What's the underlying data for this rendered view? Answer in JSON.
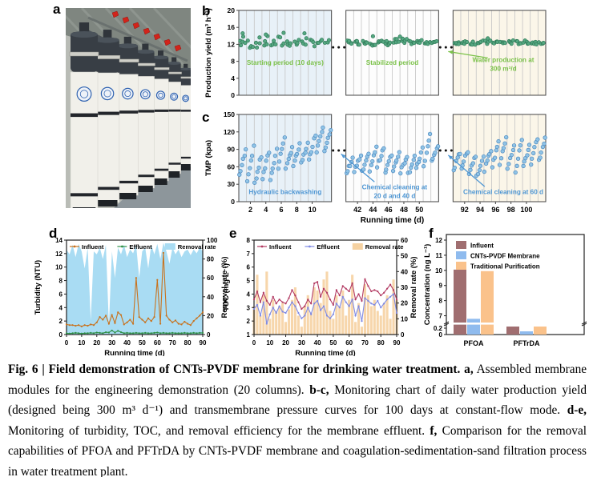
{
  "figure": {
    "panel_letters": {
      "a": "a",
      "b": "b",
      "c": "c",
      "d": "d",
      "e": "e",
      "f": "f"
    },
    "caption_segments": [
      {
        "text": "Fig. 6 | Field demonstration of CNTs-PVDF membrane for drinking water treatment. ",
        "bold": true
      },
      {
        "text": "a,",
        "bold": true
      },
      {
        "text": " Assembled membrane modules for the engineering demonstration (20 columns). ",
        "bold": false
      },
      {
        "text": "b-c,",
        "bold": true
      },
      {
        "text": " Monitoring chart of daily water production yield (designed being 300 m³ d⁻¹) and transmembrane pressure curves for 100 days at constant-flow mode. ",
        "bold": false
      },
      {
        "text": "d-e,",
        "bold": true
      },
      {
        "text": " Monitoring of turbidity, TOC, and removal efficiency for the membrane effluent. ",
        "bold": false
      },
      {
        "text": "f,",
        "bold": true
      },
      {
        "text": " Comparison for the removal capabilities of PFOA and PFTrDA by CNTs-PVDF membrane and coagulation-sedimentation-sand filtration process in water treatment plant.",
        "bold": false
      }
    ]
  },
  "panel_a": {
    "description": "Photo of assembled CNTs-PVDF membrane module columns",
    "columns": 10,
    "colors": {
      "wall": "#b9bcb6",
      "ceiling": "#7f8680",
      "floor": "#8d969b",
      "cap": "#383e45",
      "cap_hi": "#4a525a",
      "neck": "#30353b",
      "clamp": "#cfcfc8",
      "body": "#f1f0ea",
      "ring": "#23262b",
      "logo": "#2f62b0",
      "valve": "#d2231a",
      "pipe": "#4d5358"
    }
  },
  "chart_data": [
    {
      "id": "b",
      "type": "scatter",
      "ylabel": "Production yield (m³ h⁻¹)",
      "ylim": [
        0,
        20
      ],
      "yticks": [
        0,
        4,
        8,
        12,
        16,
        20
      ],
      "segment_days": 12,
      "segments": [
        {
          "start_day": 1,
          "bg": "#e8f1f8"
        },
        {
          "start_day": 41,
          "bg": "#fdfdfd"
        },
        {
          "start_day": 91,
          "bg": "#fbf6e9"
        }
      ],
      "point_color": "#55a781",
      "point_edge": "#2f7a57",
      "break_marker_value": 11.3,
      "clusters": [
        [
          1,
          12.6,
          1.6,
          5
        ],
        [
          2,
          12.2,
          1.2,
          4
        ],
        [
          3,
          12.4,
          1.3,
          4
        ],
        [
          4,
          12.6,
          1.4,
          4
        ],
        [
          5,
          12.3,
          1.0,
          4
        ],
        [
          6,
          12.5,
          1.5,
          4
        ],
        [
          7,
          12.4,
          0.9,
          4
        ],
        [
          8,
          12.3,
          1.1,
          4
        ],
        [
          9,
          12.8,
          1.2,
          4
        ],
        [
          10,
          12.3,
          0.8,
          4
        ],
        [
          11,
          12.5,
          0.6,
          4
        ],
        [
          12,
          12.5,
          0.5,
          3
        ],
        [
          41,
          12.5,
          0.5,
          5
        ],
        [
          42,
          12.4,
          0.5,
          5
        ],
        [
          43,
          12.5,
          0.4,
          5
        ],
        [
          44,
          12.4,
          0.7,
          5
        ],
        [
          45,
          12.5,
          0.4,
          5
        ],
        [
          46,
          12.3,
          0.6,
          5
        ],
        [
          47,
          12.6,
          0.8,
          5
        ],
        [
          48,
          12.5,
          0.9,
          5
        ],
        [
          49,
          12.4,
          0.4,
          5
        ],
        [
          50,
          12.5,
          0.5,
          5
        ],
        [
          51,
          12.5,
          0.4,
          5
        ],
        [
          52,
          12.4,
          0.4,
          4
        ],
        [
          91,
          12.4,
          0.5,
          5
        ],
        [
          92,
          12.5,
          0.4,
          5
        ],
        [
          93,
          12.4,
          0.5,
          5
        ],
        [
          94,
          12.5,
          0.4,
          5
        ],
        [
          95,
          12.4,
          0.5,
          5
        ],
        [
          96,
          12.5,
          0.4,
          5
        ],
        [
          97,
          12.4,
          0.4,
          5
        ],
        [
          98,
          12.5,
          0.5,
          5
        ],
        [
          99,
          12.4,
          0.4,
          5
        ],
        [
          100,
          12.5,
          0.4,
          5
        ],
        [
          101,
          12.4,
          0.5,
          5
        ],
        [
          102,
          12.5,
          0.4,
          4
        ]
      ],
      "extra_points": [
        [
          1,
          14.6
        ],
        [
          4,
          14.3
        ],
        [
          6.3,
          14.7
        ],
        [
          9,
          14.6
        ],
        [
          44,
          13.9
        ],
        [
          47.5,
          13.8
        ],
        [
          95,
          13.4
        ]
      ],
      "annotation_color": "#7cc24a",
      "annotations": [
        {
          "lines": [
            "Starting period (10 days)"
          ],
          "day": 6.5,
          "value": 7.2
        },
        {
          "lines": [
            "Stabilized period"
          ],
          "day": 46.5,
          "value": 7.2
        },
        {
          "lines": [
            "Water production at",
            "300 m³/d"
          ],
          "day": 97,
          "value": 7.8,
          "arrow": {
            "from": [
              95.0,
              8.8
            ],
            "to_gap": 1,
            "tip_value": 10.3
          }
        }
      ]
    },
    {
      "id": "c",
      "type": "scatter",
      "ylabel": "TMP (kpa)",
      "xlabel": "Running time (d)",
      "ylim": [
        0,
        150
      ],
      "yticks": [
        0,
        30,
        60,
        90,
        120,
        150
      ],
      "segment_days": 12,
      "xtick_labels": true,
      "segments": [
        {
          "start_day": 1,
          "bg": "#e8f1f8"
        },
        {
          "start_day": 41,
          "bg": "#fdfdfd"
        },
        {
          "start_day": 91,
          "bg": "#fbf6e9"
        }
      ],
      "point_color": "#90c4e6",
      "point_edge": "#4a86be",
      "break_marker_value": 88,
      "clusters": [
        [
          1,
          46,
          88
        ],
        [
          2,
          38,
          93
        ],
        [
          3,
          33,
          78
        ],
        [
          4,
          40,
          86
        ],
        [
          5,
          38,
          90
        ],
        [
          6,
          58,
          113
        ],
        [
          7,
          55,
          95
        ],
        [
          8,
          62,
          97
        ],
        [
          9,
          65,
          100
        ],
        [
          10,
          70,
          116
        ],
        [
          11,
          88,
          131
        ],
        [
          12,
          90,
          120
        ],
        [
          41,
          48,
          75
        ],
        [
          42,
          52,
          78
        ],
        [
          43,
          50,
          80
        ],
        [
          44,
          55,
          93
        ],
        [
          45,
          60,
          95
        ],
        [
          46,
          50,
          80
        ],
        [
          47,
          55,
          85
        ],
        [
          48,
          52,
          80
        ],
        [
          49,
          48,
          78
        ],
        [
          50,
          55,
          90
        ],
        [
          51,
          62,
          115
        ],
        [
          52,
          70,
          95
        ],
        [
          91,
          55,
          85
        ],
        [
          92,
          58,
          88
        ],
        [
          93,
          50,
          80
        ],
        [
          94,
          45,
          75
        ],
        [
          95,
          55,
          90
        ],
        [
          96,
          60,
          105
        ],
        [
          97,
          65,
          112
        ],
        [
          98,
          58,
          95
        ],
        [
          99,
          52,
          108
        ],
        [
          100,
          60,
          98
        ],
        [
          101,
          65,
          110
        ],
        [
          102,
          70,
          108
        ]
      ],
      "extra_points": [],
      "annotation_color": "#4f97d4",
      "annotations": [
        {
          "lines": [
            "Hydraulic backwashing"
          ],
          "day": 6.5,
          "value": 13
        },
        {
          "lines": [
            "Chemical cleaning at",
            "20 d and 40 d"
          ],
          "day": 46.8,
          "value": 21,
          "arrow": {
            "from": [
              44.2,
              34
            ],
            "to_gap": 0,
            "tip_value": 82
          }
        },
        {
          "lines": [
            "Chemical cleaning at 60 d"
          ],
          "day": 97,
          "value": 13,
          "arrow": {
            "from": [
              94.6,
              26
            ],
            "to_gap": 1,
            "tip_value": 80
          }
        }
      ]
    },
    {
      "id": "d",
      "type": "line-area",
      "xlabel": "Running time (d)",
      "xticks": [
        0,
        10,
        20,
        30,
        40,
        50,
        60,
        70,
        80,
        90
      ],
      "xlim": [
        0,
        90
      ],
      "left_axis": {
        "label": "Turbidity (NTU)",
        "lim": [
          0,
          14
        ],
        "ticks": [
          0,
          2,
          4,
          6,
          8,
          10,
          12,
          14
        ]
      },
      "right_axis": {
        "label": "Removal rate (%)",
        "lim": [
          0,
          100
        ],
        "ticks": [
          0,
          20,
          40,
          60,
          80,
          100
        ]
      },
      "x": [
        0,
        2,
        4,
        6,
        8,
        10,
        12,
        14,
        16,
        18,
        20,
        22,
        24,
        26,
        28,
        30,
        32,
        34,
        36,
        38,
        40,
        42,
        44,
        46,
        48,
        50,
        52,
        54,
        56,
        58,
        60,
        62,
        64,
        66,
        68,
        70,
        72,
        74,
        76,
        78,
        80,
        82,
        84,
        86,
        88,
        90
      ],
      "series": [
        {
          "name": "Removal rate",
          "render": "area",
          "axis": "right",
          "color": "#a9dcf3",
          "values": [
            90,
            85,
            95,
            82,
            96,
            88,
            70,
            92,
            15,
            88,
            85,
            92,
            80,
            95,
            10,
            88,
            60,
            92,
            85,
            95,
            82,
            90,
            86,
            95,
            60,
            88,
            92,
            70,
            95,
            85,
            96,
            80,
            97,
            88,
            75,
            92,
            85,
            90,
            82,
            88,
            90,
            84,
            90,
            86,
            92,
            88
          ]
        },
        {
          "name": "Influent",
          "render": "line",
          "axis": "left",
          "color": "#c8731f",
          "values": [
            1.5,
            1.4,
            1.4,
            1.3,
            1.4,
            1.2,
            1.4,
            1.3,
            1.5,
            1.4,
            1.8,
            2.6,
            2.2,
            2.8,
            1.6,
            2.9,
            1.7,
            3.3,
            2.9,
            1.5,
            1.8,
            2.2,
            1.6,
            8.4,
            2.6,
            2.2,
            1.8,
            2.4,
            2.0,
            2.6,
            8.1,
            1.6,
            12.1,
            2.8,
            2.2,
            1.8,
            2.1,
            1.6,
            1.5,
            1.9,
            1.6,
            1.4,
            2.0,
            2.4,
            2.8,
            3.3
          ]
        },
        {
          "name": "Effluent",
          "render": "line",
          "axis": "left",
          "color": "#2f9148",
          "values": [
            0.2,
            0.15,
            0.2,
            0.25,
            0.2,
            0.15,
            0.2,
            0.2,
            0.25,
            0.2,
            0.3,
            0.25,
            0.2,
            0.35,
            0.3,
            0.6,
            0.3,
            0.55,
            0.35,
            0.2,
            0.25,
            0.2,
            0.2,
            0.25,
            0.2,
            0.2,
            0.25,
            0.2,
            0.2,
            0.25,
            0.3,
            0.2,
            0.25,
            0.2,
            0.2,
            0.25,
            0.2,
            0.2,
            0.2,
            0.25,
            0.2,
            0.2,
            0.25,
            0.2,
            0.25,
            0.25
          ]
        }
      ],
      "legend_order": [
        "Influent",
        "Effluent",
        "Removal rate"
      ]
    },
    {
      "id": "e",
      "type": "line-bar",
      "xlabel": "Running time (d)",
      "xticks": [
        0,
        10,
        20,
        30,
        40,
        50,
        60,
        70,
        80,
        90
      ],
      "xlim": [
        0,
        90
      ],
      "left_axis": {
        "label": "TOC (mg L⁻¹)",
        "lim": [
          1,
          8
        ],
        "ticks": [
          1,
          2,
          3,
          4,
          5,
          6,
          7,
          8
        ]
      },
      "right_axis": {
        "label": "Removal rate (%)",
        "lim": [
          0,
          60
        ],
        "ticks": [
          0,
          10,
          20,
          30,
          40,
          50,
          60
        ]
      },
      "x": [
        0,
        2,
        4,
        6,
        8,
        10,
        12,
        14,
        16,
        18,
        20,
        22,
        24,
        26,
        28,
        30,
        32,
        34,
        36,
        38,
        40,
        42,
        44,
        46,
        48,
        50,
        52,
        54,
        56,
        58,
        60,
        62,
        64,
        66,
        68,
        70,
        72,
        74,
        76,
        78,
        80,
        82,
        84,
        86,
        88,
        90
      ],
      "series": [
        {
          "name": "Removal rate",
          "render": "bar",
          "axis": "right",
          "color": "#f6d2a2",
          "values": [
            18,
            38,
            12,
            25,
            40,
            10,
            22,
            15,
            18,
            20,
            8,
            16,
            22,
            30,
            12,
            5,
            18,
            25,
            14,
            30,
            28,
            20,
            35,
            40,
            15,
            10,
            25,
            18,
            28,
            12,
            22,
            38,
            8,
            20,
            5,
            32,
            25,
            18,
            22,
            15,
            12,
            20,
            25,
            10,
            35,
            22
          ]
        },
        {
          "name": "Influent",
          "render": "line",
          "axis": "left",
          "color": "#b23a62",
          "values": [
            3.6,
            4.2,
            3.4,
            4.1,
            3.5,
            3.2,
            3.8,
            3.3,
            3.6,
            3.4,
            3.3,
            3.7,
            4.3,
            3.9,
            3.4,
            2.9,
            3.1,
            3.6,
            3.3,
            4.8,
            4.9,
            3.8,
            4.4,
            4.1,
            3.6,
            3.2,
            4.3,
            3.9,
            4.6,
            4.4,
            4.2,
            4.8,
            3.6,
            4.0,
            3.5,
            5.1,
            4.6,
            4.2,
            4.3,
            4.2,
            3.9,
            4.1,
            4.4,
            4.7,
            4.3,
            3.6
          ]
        },
        {
          "name": "Effluent",
          "render": "line",
          "axis": "left",
          "color": "#7f8ae4",
          "values": [
            2.9,
            3.2,
            2.4,
            3.4,
            1.8,
            2.5,
            3.0,
            2.6,
            3.1,
            2.7,
            2.6,
            3.0,
            3.4,
            3.1,
            2.6,
            2.2,
            2.4,
            3.0,
            2.5,
            3.3,
            3.5,
            2.8,
            3.1,
            2.4,
            2.2,
            2.5,
            3.3,
            3.0,
            3.8,
            3.4,
            3.1,
            3.6,
            2.4,
            3.1,
            2.0,
            3.7,
            3.5,
            3.3,
            3.2,
            3.5,
            3.0,
            3.3,
            3.6,
            3.8,
            4.0,
            2.6
          ]
        }
      ],
      "legend_order": [
        "Influent",
        "Effluent",
        "Removal rate"
      ]
    },
    {
      "id": "f",
      "type": "bar-broken",
      "ylabel": "Concentration (ng L⁻¹)",
      "categories": [
        "PFOA",
        "PFTrDA"
      ],
      "yticks_low": [
        0,
        0.2
      ],
      "yticks_high": [
        7,
        8,
        9,
        10,
        11,
        12
      ],
      "break_between": [
        0.3,
        6.5
      ],
      "series": [
        {
          "name": "Influent",
          "color": "#a06e70",
          "values": [
            10.05,
            0.25
          ]
        },
        {
          "name": "CNTs-PVDF Membrane",
          "color": "#8fbbee",
          "values": [
            6.8,
            0.1
          ]
        },
        {
          "name": "Traditional Purification",
          "color": "#fac28b",
          "values": [
            9.95,
            0.25
          ]
        }
      ]
    }
  ]
}
